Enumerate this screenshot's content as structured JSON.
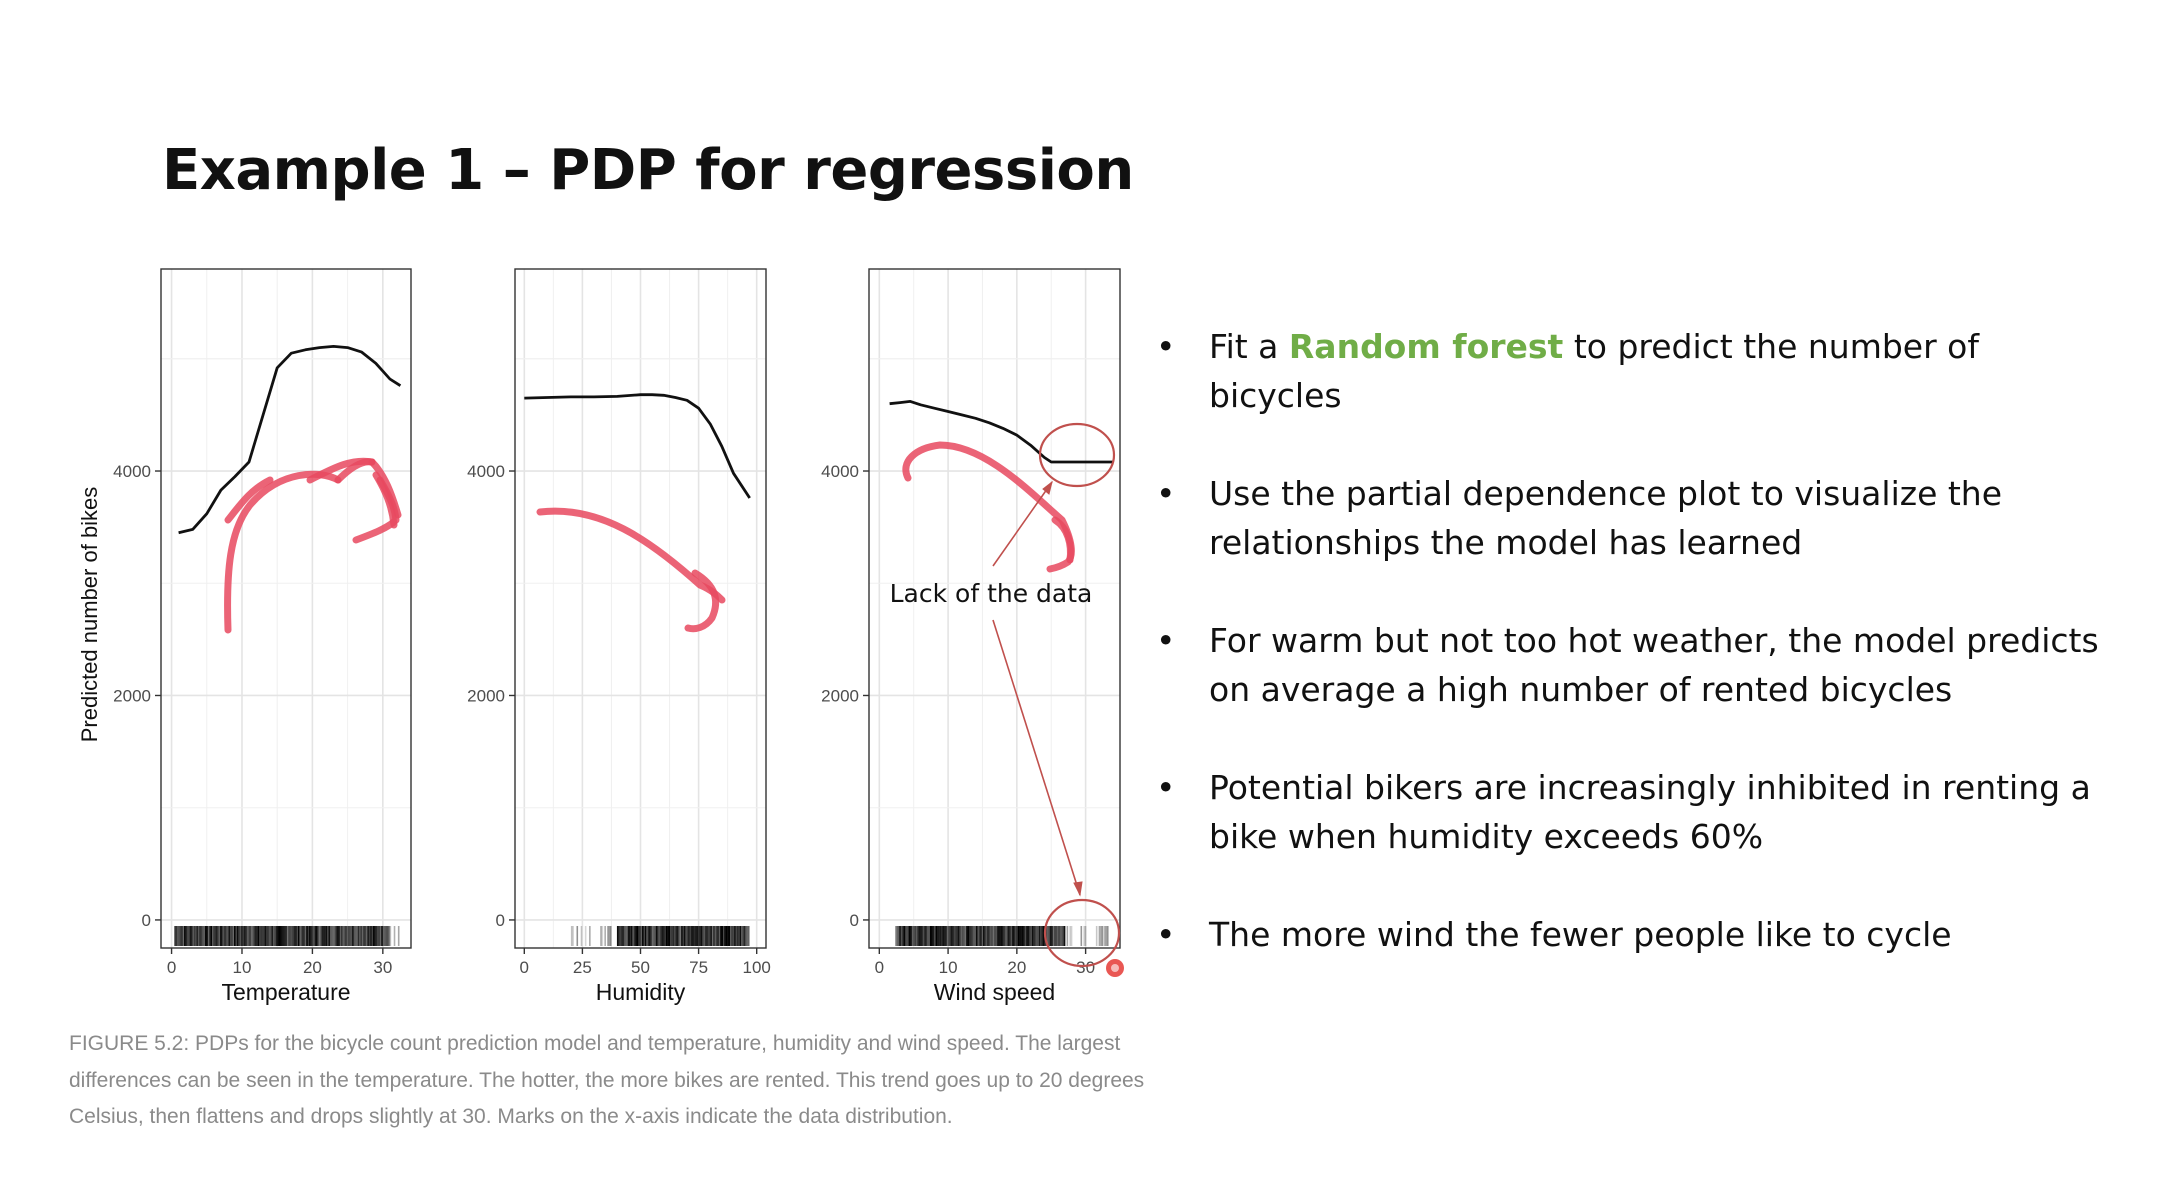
{
  "slide": {
    "title": "Example 1 – PDP for regression"
  },
  "bullets": [
    {
      "before": "Fit a ",
      "highlight": "Random forest",
      "after": " to predict the number of bicycles"
    },
    {
      "before": "Use the partial dependence plot to visualize the relationships the model has learned",
      "highlight": "",
      "after": ""
    },
    {
      "before": "For warm but not too hot weather, the model predicts on average a high number of rented bicycles",
      "highlight": "",
      "after": ""
    },
    {
      "before": "Potential bikers are increasingly inhibited in renting a bike when humidity exceeds 60%",
      "highlight": "",
      "after": ""
    },
    {
      "before": "The more wind the fewer people like to cycle",
      "highlight": "",
      "after": ""
    }
  ],
  "bullet_glyph": "•",
  "highlight_color": "#70ad47",
  "annotation": {
    "text": "Lack of the data",
    "color": "#c0504d"
  },
  "ink_color": "#e8495f",
  "caption": "FIGURE 5.2: PDPs for the bicycle count prediction model and temperature, humidity and wind speed. The largest differences can be seen in the temperature. The hotter, the more bikes are rented. This trend goes up to 20 degrees Celsius, then flattens and drops slightly at 30. Marks on the x-axis indicate the data distribution.",
  "chart_data": [
    {
      "type": "line",
      "xlabel": "Temperature",
      "ylabel": "Predicted number of bikes",
      "xlim": [
        -1.5,
        34
      ],
      "ylim": [
        -250,
        5800
      ],
      "xticks": [
        0,
        10,
        20,
        30
      ],
      "yticks": [
        0,
        2000,
        4000
      ],
      "grid": true,
      "series": [
        {
          "x": [
            1,
            3,
            5,
            7,
            9,
            11,
            13,
            15,
            17,
            19,
            21,
            23,
            25,
            27,
            29,
            31,
            32.5
          ],
          "y": [
            3450,
            3480,
            3620,
            3830,
            3950,
            4080,
            4500,
            4920,
            5050,
            5080,
            5100,
            5110,
            5100,
            5060,
            4960,
            4820,
            4760
          ]
        }
      ],
      "rug": {
        "from": 0.5,
        "to": 32.5,
        "dense_from": 0.5,
        "dense_to": 31
      }
    },
    {
      "type": "line",
      "xlabel": "Humidity",
      "ylabel": "",
      "xlim": [
        -4,
        104
      ],
      "ylim": [
        -250,
        5800
      ],
      "xticks": [
        0,
        25,
        50,
        75,
        100
      ],
      "yticks": [
        0,
        2000,
        4000
      ],
      "grid": true,
      "series": [
        {
          "x": [
            0,
            10,
            20,
            30,
            40,
            50,
            55,
            60,
            65,
            70,
            75,
            80,
            85,
            90,
            97
          ],
          "y": [
            4650,
            4655,
            4660,
            4660,
            4665,
            4680,
            4680,
            4675,
            4655,
            4630,
            4560,
            4420,
            4220,
            3980,
            3760
          ]
        }
      ],
      "rug": {
        "from": 18,
        "to": 98,
        "dense_from": 40,
        "dense_to": 97
      }
    },
    {
      "type": "line",
      "xlabel": "Wind speed",
      "ylabel": "",
      "xlim": [
        -1.5,
        35
      ],
      "ylim": [
        -250,
        5800
      ],
      "xticks": [
        0,
        10,
        20,
        30
      ],
      "yticks": [
        0,
        2000,
        4000
      ],
      "grid": true,
      "series": [
        {
          "x": [
            1.5,
            3,
            4.5,
            6,
            8,
            10,
            12,
            14,
            16,
            18,
            20,
            22,
            24,
            25,
            26,
            28,
            30,
            32,
            34
          ],
          "y": [
            4600,
            4610,
            4620,
            4590,
            4560,
            4530,
            4500,
            4470,
            4430,
            4380,
            4320,
            4230,
            4120,
            4080,
            4080,
            4080,
            4080,
            4080,
            4080
          ]
        }
      ],
      "rug": {
        "from": 2,
        "to": 34,
        "dense_from": 2.5,
        "dense_to": 27
      }
    }
  ]
}
